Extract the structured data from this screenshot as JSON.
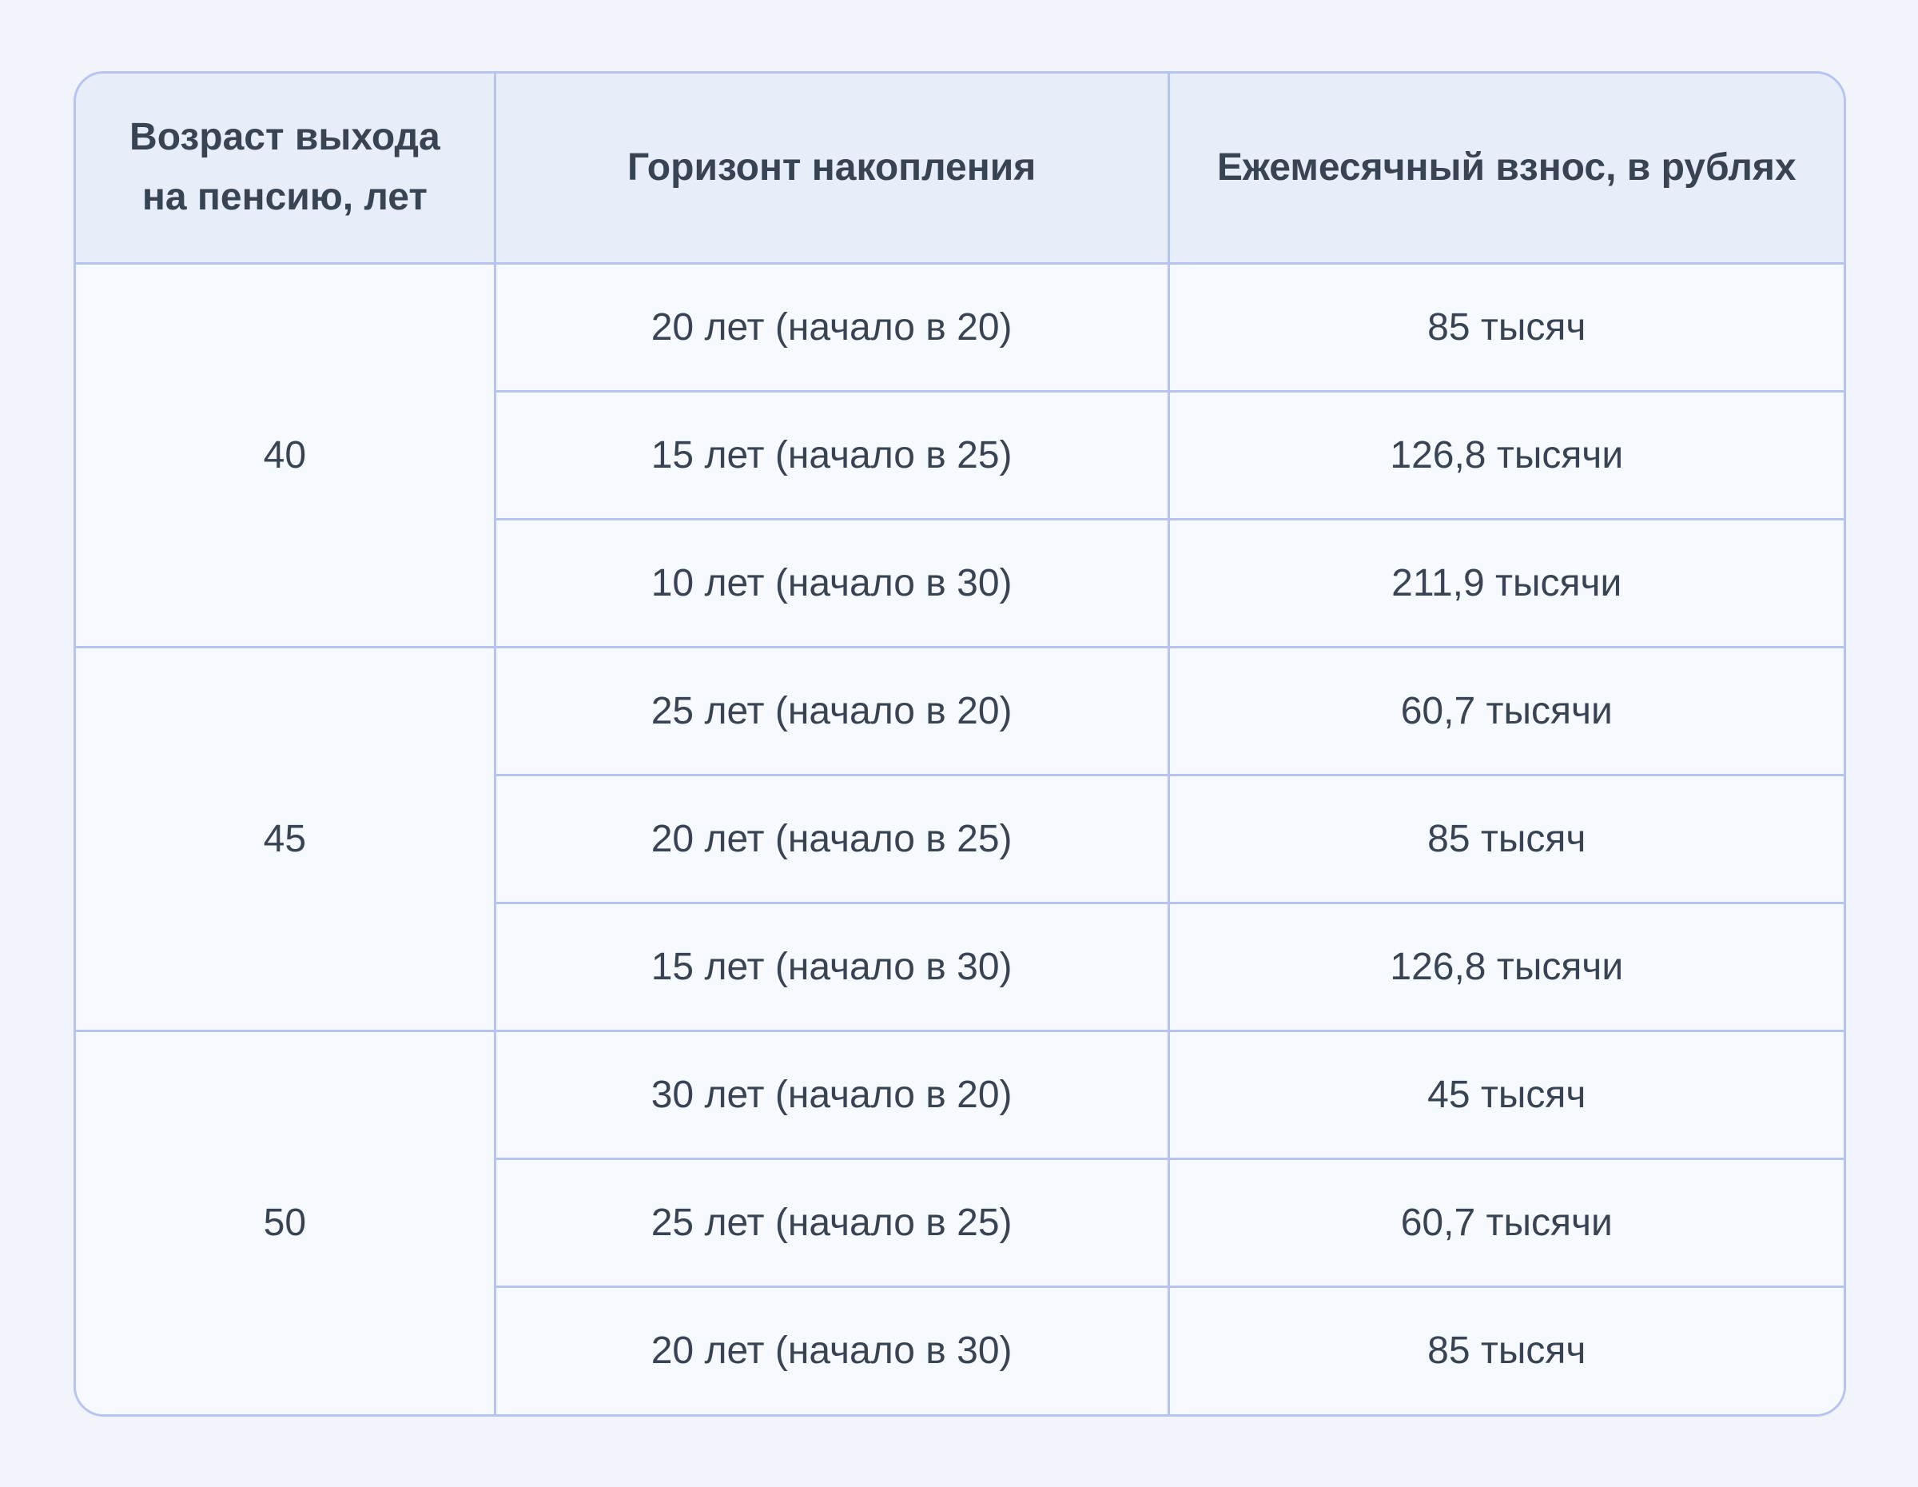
{
  "page": {
    "background_color": "#F1F5FB",
    "text_color": "#384453",
    "border_color": "#B6C4EF",
    "header_bg_color": "#E7EDF9",
    "body_bg_color": "#F6F9FD"
  },
  "table": {
    "columns": [
      "Возраст выхода на пенсию, лет",
      "Горизонт накопления",
      "Ежемесячный взнос, в рублях"
    ],
    "groups": [
      {
        "age": "40",
        "rows": [
          {
            "horizon": "20 лет (начало в 20)",
            "payment": "85 тысяч"
          },
          {
            "horizon": "15 лет (начало в 25)",
            "payment": "126,8 тысячи"
          },
          {
            "horizon": "10 лет (начало в 30)",
            "payment": "211,9 тысячи"
          }
        ]
      },
      {
        "age": "45",
        "rows": [
          {
            "horizon": "25 лет (начало в 20)",
            "payment": "60,7 тысячи"
          },
          {
            "horizon": "20 лет (начало в 25)",
            "payment": "85 тысяч"
          },
          {
            "horizon": "15 лет (начало в 30)",
            "payment": "126,8 тысячи"
          }
        ]
      },
      {
        "age": "50",
        "rows": [
          {
            "horizon": "30 лет (начало в 20)",
            "payment": "45 тысяч"
          },
          {
            "horizon": "25 лет (начало в 25)",
            "payment": "60,7 тысячи"
          },
          {
            "horizon": "20 лет (начало в 30)",
            "payment": "85 тысяч"
          }
        ]
      }
    ]
  },
  "chart_data": {
    "type": "table",
    "title": "",
    "columns": [
      "Возраст выхода на пенсию, лет",
      "Горизонт накопления",
      "Ежемесячный взнос, в рублях"
    ],
    "rows": [
      [
        "40",
        "20 лет (начало в 20)",
        "85 тысяч"
      ],
      [
        "40",
        "15 лет (начало в 25)",
        "126,8 тысячи"
      ],
      [
        "40",
        "10 лет (начало в 30)",
        "211,9 тысячи"
      ],
      [
        "45",
        "25 лет (начало в 20)",
        "60,7 тысячи"
      ],
      [
        "45",
        "20 лет (начало в 25)",
        "85 тысяч"
      ],
      [
        "45",
        "15 лет (начало в 30)",
        "126,8 тысячи"
      ],
      [
        "50",
        "30 лет (начало в 20)",
        "45 тысяч"
      ],
      [
        "50",
        "25 лет (начало в 25)",
        "60,7 тысячи"
      ],
      [
        "50",
        "20 лет (начало в 30)",
        "85 тысяч"
      ]
    ],
    "layout": {
      "grouped_first_column_rowspan": 3,
      "grid": true,
      "rounded_card": true
    }
  }
}
